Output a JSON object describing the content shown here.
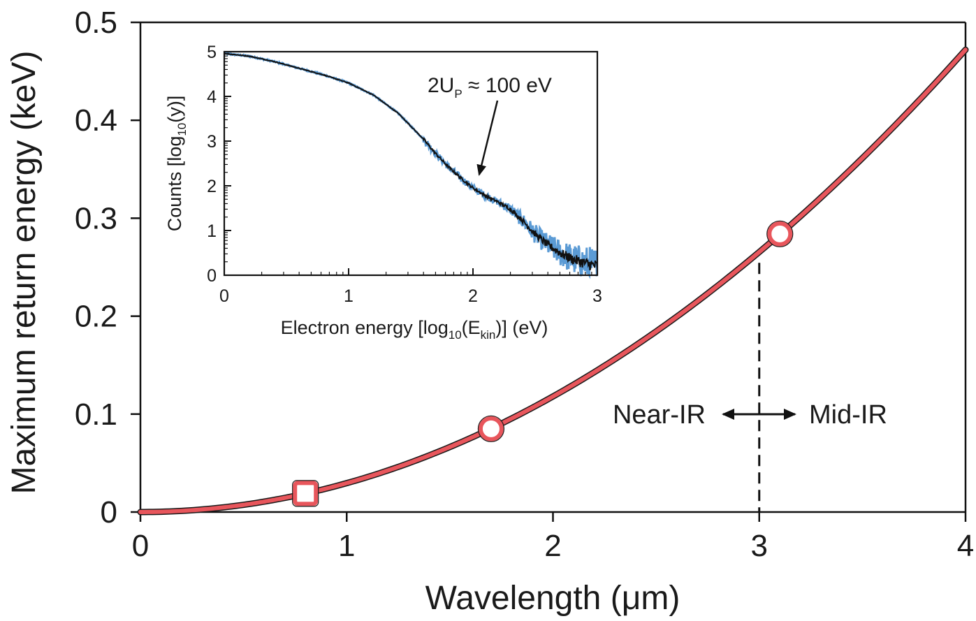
{
  "chart_data": [
    {
      "type": "line",
      "id": "main",
      "title": "",
      "xlabel": "Wavelength (μm)",
      "ylabel": "Maximum return energy (keV)",
      "xlim": [
        0,
        4
      ],
      "ylim": [
        0,
        0.5
      ],
      "xticks": [
        0,
        1,
        2,
        3,
        4
      ],
      "xtick_labels": [
        "0",
        "1",
        "2",
        "3",
        "4"
      ],
      "yticks": [
        0,
        0.1,
        0.2,
        0.3,
        0.4,
        0.5
      ],
      "ytick_labels": [
        "0",
        "0.1",
        "0.2",
        "0.3",
        "0.4",
        "0.5"
      ],
      "grid": false,
      "series": [
        {
          "name": "Maximum return energy",
          "kind": "curve",
          "formula": "E = 0.0295 * x^2",
          "coefficient": 0.0295,
          "color": "#e8565c",
          "outline": "#1a1a1a"
        }
      ],
      "markers": [
        {
          "name": "square-marker",
          "shape": "square",
          "x": 0.8,
          "y": 0.019
        },
        {
          "name": "circle-marker",
          "shape": "circle",
          "x": 1.7,
          "y": 0.085
        },
        {
          "name": "circle-marker",
          "shape": "circle",
          "x": 3.1,
          "y": 0.284
        }
      ],
      "boundary_line": {
        "x": 3.0,
        "y_top": 0.283,
        "style": "dashed"
      },
      "annotations": {
        "near_ir": "Near-IR",
        "mid_ir": "Mid-IR",
        "arrow": "double-headed"
      }
    },
    {
      "type": "line",
      "id": "inset",
      "xlabel_parts": [
        "Electron energy [log",
        "10",
        "(E",
        "kin",
        ")] (eV)"
      ],
      "ylabel_parts": [
        "Counts [log",
        "10",
        "(y)]"
      ],
      "xlim": [
        0,
        3
      ],
      "ylim": [
        0,
        5
      ],
      "xticks": [
        0,
        1,
        2,
        3
      ],
      "xtick_labels": [
        "0",
        "1",
        "2",
        "3"
      ],
      "yticks": [
        0,
        1,
        2,
        3,
        4,
        5
      ],
      "ytick_labels": [
        "0",
        "1",
        "2",
        "3",
        "4",
        "5"
      ],
      "grid": false,
      "series": [
        {
          "name": "Measured spectrum (blue)",
          "color": "#5b9bd5",
          "noise": "high",
          "x": [
            0,
            0.2,
            0.4,
            0.6,
            0.8,
            1.0,
            1.2,
            1.4,
            1.6,
            1.7,
            1.8,
            1.9,
            2.0,
            2.1,
            2.2,
            2.3,
            2.4,
            2.5,
            2.6,
            2.7,
            2.8,
            2.9,
            3.0
          ],
          "y": [
            4.96,
            4.9,
            4.78,
            4.63,
            4.48,
            4.3,
            4.03,
            3.62,
            3.05,
            2.72,
            2.43,
            2.18,
            1.95,
            1.78,
            1.64,
            1.48,
            1.22,
            0.92,
            0.68,
            0.5,
            0.36,
            0.27,
            0.2
          ]
        },
        {
          "name": "Smoothed spectrum (black)",
          "color": "#111111",
          "noise": "low",
          "x": [
            0,
            0.2,
            0.4,
            0.6,
            0.8,
            1.0,
            1.2,
            1.4,
            1.6,
            1.7,
            1.8,
            1.9,
            2.0,
            2.1,
            2.2,
            2.3,
            2.4,
            2.5,
            2.6,
            2.7,
            2.8,
            2.9,
            3.0
          ],
          "y": [
            4.96,
            4.9,
            4.78,
            4.63,
            4.48,
            4.3,
            4.03,
            3.62,
            3.05,
            2.72,
            2.43,
            2.18,
            1.95,
            1.78,
            1.64,
            1.48,
            1.22,
            0.92,
            0.68,
            0.5,
            0.36,
            0.27,
            0.2
          ]
        }
      ],
      "annotation": {
        "text_parts": [
          "2U",
          "P",
          " ≈ 100 eV"
        ],
        "arrow_to": {
          "x": 2.05,
          "y": 2.25
        }
      }
    }
  ]
}
